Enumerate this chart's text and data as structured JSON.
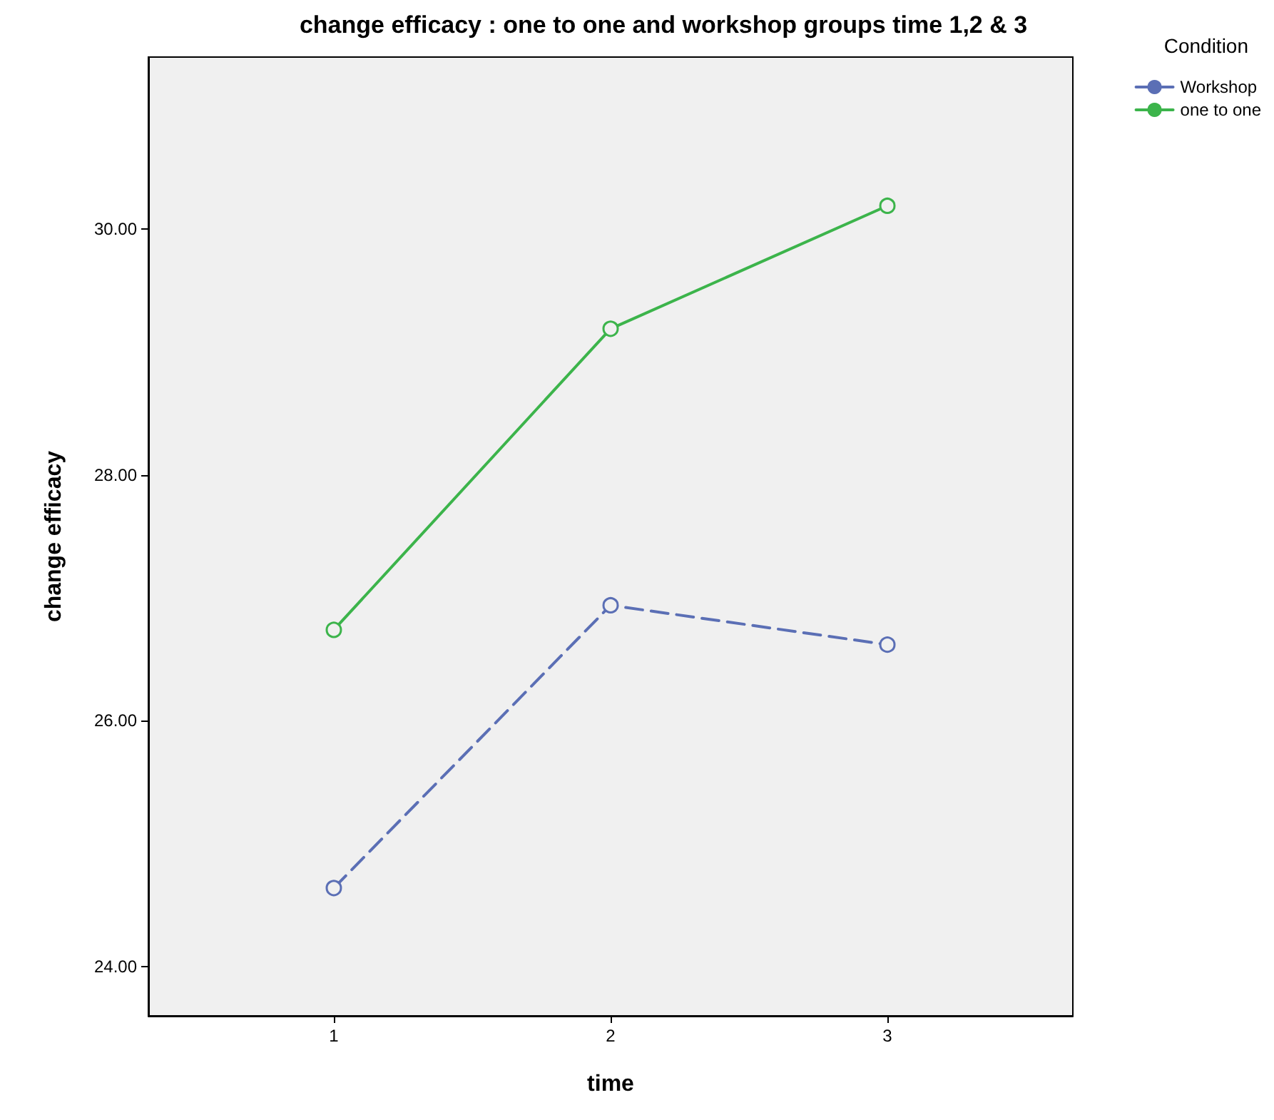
{
  "chart_data": {
    "type": "line",
    "title": "change efficacy : one to one and workshop groups time 1,2 & 3",
    "xlabel": "time",
    "ylabel": "change efficacy",
    "legend_title": "Condition",
    "x": [
      1,
      2,
      3
    ],
    "series": [
      {
        "name": "Workshop",
        "color": "#5b6fb5",
        "values": [
          24.64,
          26.94,
          26.62
        ],
        "line_style": "dashed"
      },
      {
        "name": "one to one",
        "color": "#3cb44b",
        "values": [
          26.74,
          29.19,
          30.19
        ],
        "line_style": "solid"
      }
    ],
    "xlim": [
      0.33,
      3.67
    ],
    "xticks": [
      1,
      2,
      3
    ],
    "ylim": [
      23.6,
      31.4
    ],
    "yticks": [
      {
        "value": 24,
        "label": "24.00"
      },
      {
        "value": 26,
        "label": "26.00"
      },
      {
        "value": 28,
        "label": "28.00"
      },
      {
        "value": 30,
        "label": "30.00"
      }
    ],
    "grid": false,
    "legend": "top right",
    "marker": "circle"
  }
}
